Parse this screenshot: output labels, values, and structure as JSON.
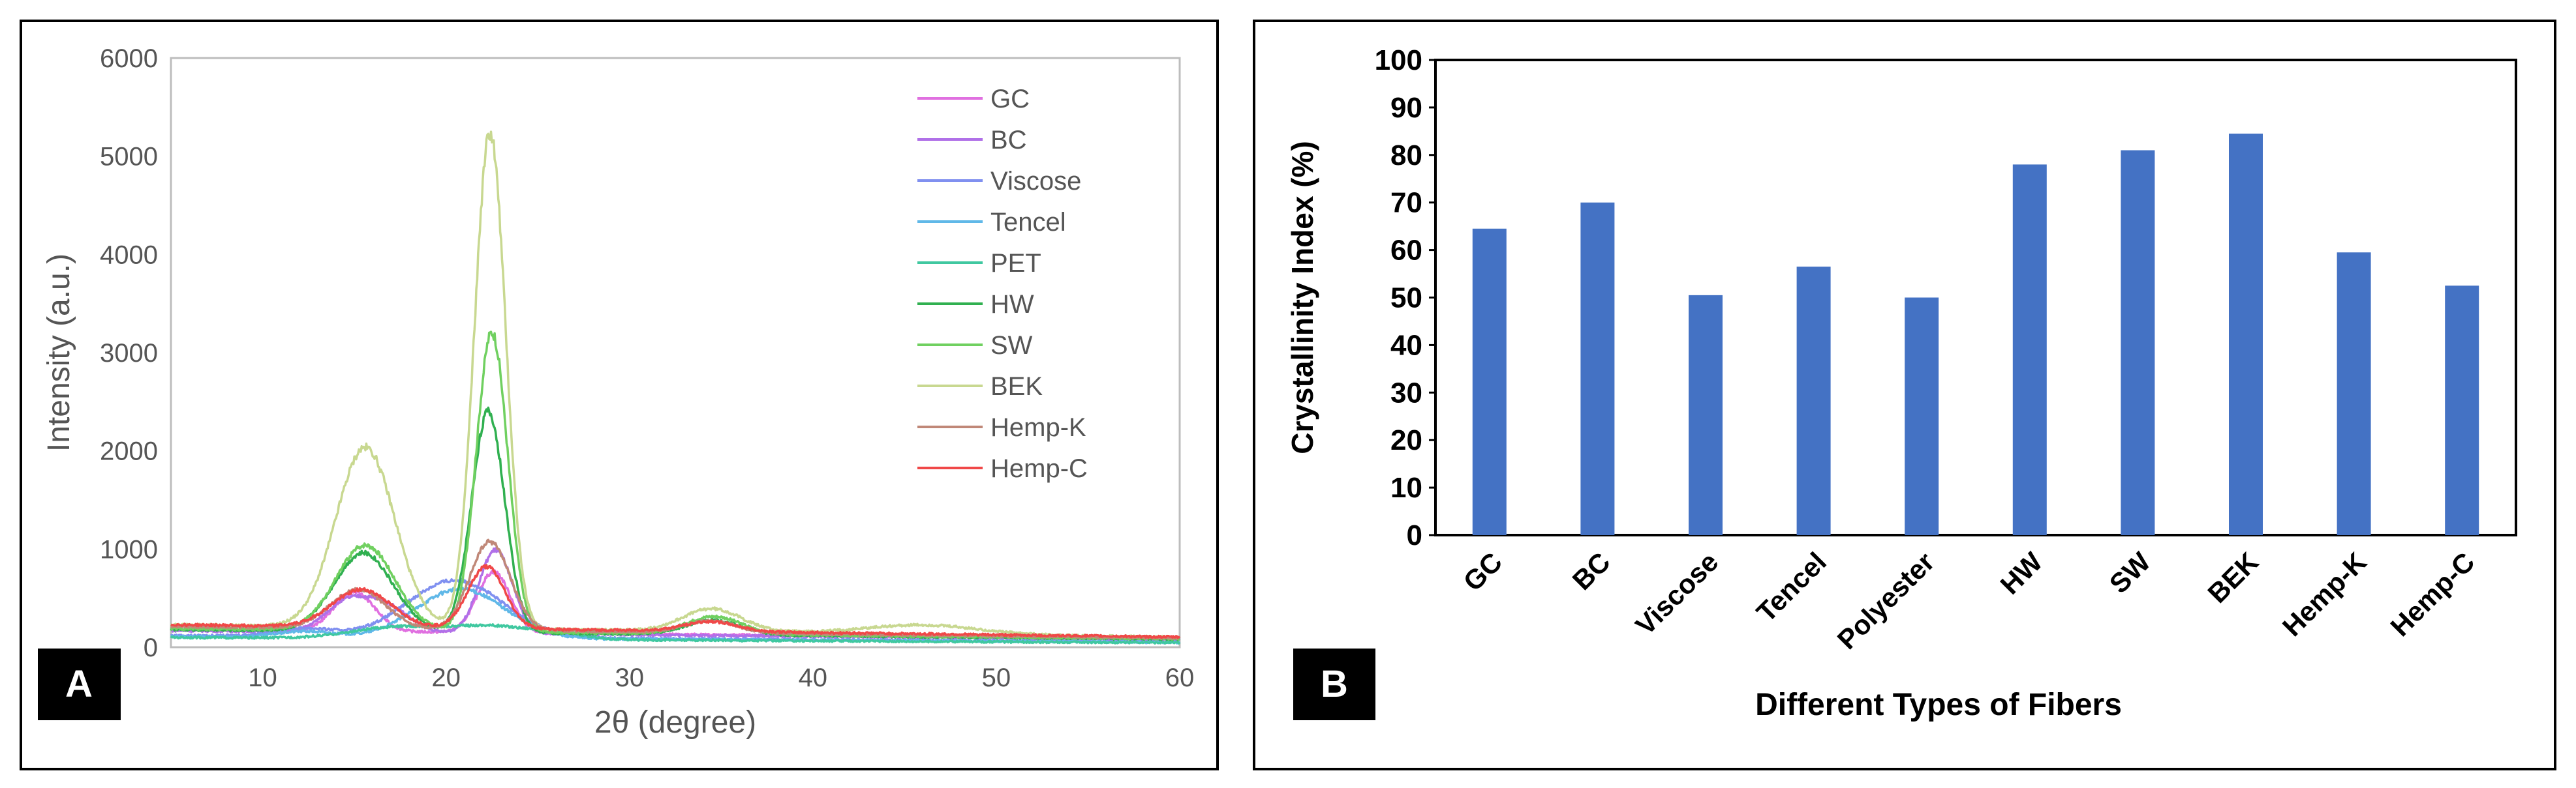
{
  "chart_data": [
    {
      "type": "line",
      "panel_label": "A",
      "xlabel": "2θ (degree)",
      "ylabel": "Intensity (a.u.)",
      "xlim": [
        5,
        60
      ],
      "ylim": [
        0,
        6000
      ],
      "xticks": [
        10,
        20,
        30,
        40,
        50,
        60
      ],
      "yticks": [
        0,
        1000,
        2000,
        3000,
        4000,
        5000,
        6000
      ],
      "legend_position": "top-right",
      "grid": false,
      "series": [
        {
          "name": "GC",
          "color": "#e070e0",
          "base": 180,
          "peaks": [
            [
              15,
              1.1,
              400
            ],
            [
              22.6,
              0.9,
              620
            ]
          ]
        },
        {
          "name": "BC",
          "color": "#b070e8",
          "base": 170,
          "peaks": [
            [
              14.6,
              1.2,
              300
            ],
            [
              16.8,
              1.2,
              250
            ],
            [
              22.7,
              0.9,
              850
            ]
          ]
        },
        {
          "name": "Viscose",
          "color": "#8090f0",
          "base": 120,
          "peaks": [
            [
              12.2,
              1.6,
              80
            ],
            [
              20.5,
              2.6,
              580
            ]
          ]
        },
        {
          "name": "Tencel",
          "color": "#60b8e8",
          "base": 110,
          "peaks": [
            [
              12.3,
              1.5,
              60
            ],
            [
              20.8,
              2.4,
              500
            ]
          ]
        },
        {
          "name": "PET",
          "color": "#40c8a0",
          "base": 100,
          "peaks": [
            [
              17.5,
              2.5,
              120
            ],
            [
              22.5,
              2.0,
              120
            ],
            [
              26,
              1.5,
              60
            ]
          ]
        },
        {
          "name": "HW",
          "color": "#30b050",
          "base": 180,
          "peaks": [
            [
              15.5,
              1.6,
              800
            ],
            [
              22.3,
              0.9,
              2250
            ],
            [
              34.6,
              1.5,
              150
            ]
          ]
        },
        {
          "name": "SW",
          "color": "#70d060",
          "base": 190,
          "peaks": [
            [
              15.6,
              1.6,
              870
            ],
            [
              22.5,
              0.85,
              3050
            ],
            [
              34.6,
              1.5,
              180
            ]
          ]
        },
        {
          "name": "BEK",
          "color": "#c8d890",
          "base": 230,
          "peaks": [
            [
              15.6,
              1.6,
              1830
            ],
            [
              22.4,
              0.85,
              5050
            ],
            [
              34.5,
              1.6,
              230
            ],
            [
              46,
              3,
              90
            ]
          ]
        },
        {
          "name": "Hemp-K",
          "color": "#c08878",
          "base": 210,
          "peaks": [
            [
              15.2,
              1.5,
              400
            ],
            [
              22.4,
              1.1,
              900
            ],
            [
              34.4,
              1.4,
              120
            ]
          ]
        },
        {
          "name": "Hemp-C",
          "color": "#f04848",
          "base": 230,
          "peaks": [
            [
              15.4,
              1.6,
              380
            ],
            [
              22.2,
              1.0,
              630
            ],
            [
              34.4,
              1.4,
              100
            ]
          ]
        }
      ]
    },
    {
      "type": "bar",
      "panel_label": "B",
      "xlabel": "Different Types of Fibers",
      "ylabel": "Crystallinity Index (%)",
      "ylim": [
        0,
        100
      ],
      "yticks": [
        0,
        10,
        20,
        30,
        40,
        50,
        60,
        70,
        80,
        90,
        100
      ],
      "grid": false,
      "bar_color": "#4472c4",
      "categories": [
        "GC",
        "BC",
        "Viscose",
        "Tencel",
        "Polyester",
        "HW",
        "SW",
        "BEK",
        "Hemp-K",
        "Hemp-C"
      ],
      "values": [
        64.5,
        70,
        50.5,
        56.5,
        50,
        78,
        81,
        84.5,
        59.5,
        52.5
      ]
    }
  ]
}
